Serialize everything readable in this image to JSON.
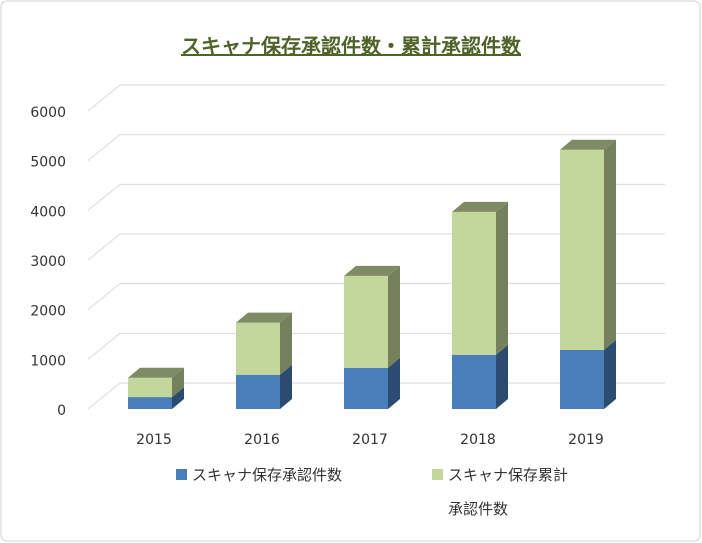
{
  "chart_data": {
    "type": "bar3d_stacked",
    "title": "スキャナ保存承認件数・累計承認件数",
    "categories": [
      "2015",
      "2016",
      "2017",
      "2018",
      "2019"
    ],
    "series": [
      {
        "name": "スキャナ保存承認件数",
        "color": "#4a7ebb",
        "values": [
          240,
          690,
          830,
          1090,
          1190
        ]
      },
      {
        "name": "スキャナ保存累計承認件数",
        "color": "#c3d69b",
        "values": [
          390,
          1050,
          1850,
          2880,
          4030
        ]
      }
    ],
    "ylim": [
      0,
      6000
    ],
    "yticks": [
      0,
      1000,
      2000,
      3000,
      4000,
      5000,
      6000
    ],
    "grid": true
  }
}
